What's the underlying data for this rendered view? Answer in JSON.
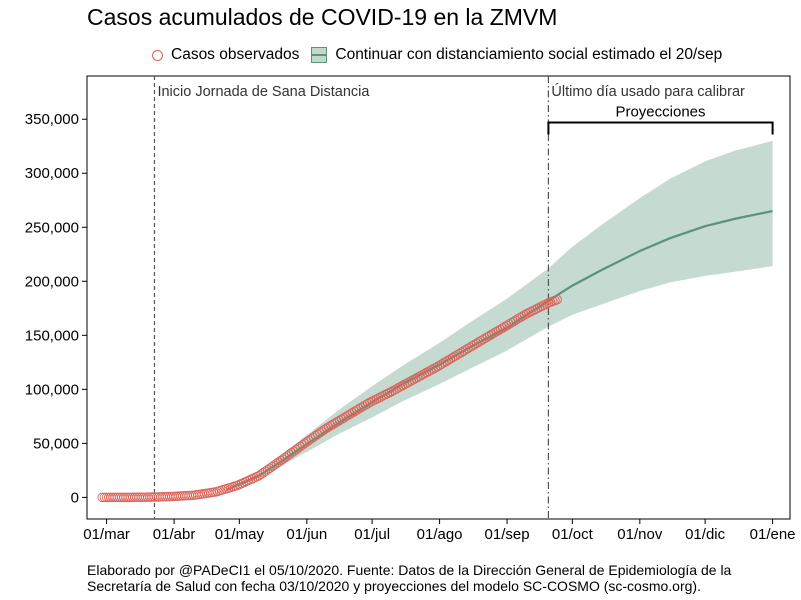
{
  "chart_data": {
    "type": "line",
    "title": "Casos acumulados de COVID-19 en la ZMVM",
    "xlabel": "",
    "ylabel": "",
    "x_axis": {
      "type": "date",
      "range": [
        "2020-02-21",
        "2021-01-09"
      ]
    },
    "ylim": [
      -20000,
      390000
    ],
    "grid": false,
    "legend_position": "top",
    "x_ticks": [
      {
        "date": "2020-03-01",
        "label": "01/mar"
      },
      {
        "date": "2020-04-01",
        "label": "01/abr"
      },
      {
        "date": "2020-05-01",
        "label": "01/may"
      },
      {
        "date": "2020-06-01",
        "label": "01/jun"
      },
      {
        "date": "2020-07-01",
        "label": "01/jul"
      },
      {
        "date": "2020-08-01",
        "label": "01/ago"
      },
      {
        "date": "2020-09-01",
        "label": "01/sep"
      },
      {
        "date": "2020-10-01",
        "label": "01/oct"
      },
      {
        "date": "2020-11-01",
        "label": "01/nov"
      },
      {
        "date": "2020-12-01",
        "label": "01/dic"
      },
      {
        "date": "2021-01-01",
        "label": "01/ene"
      }
    ],
    "y_ticks": [
      {
        "value": 0,
        "label": "0"
      },
      {
        "value": 50000,
        "label": "50,000"
      },
      {
        "value": 100000,
        "label": "100,000"
      },
      {
        "value": 150000,
        "label": "150,000"
      },
      {
        "value": 200000,
        "label": "200,000"
      },
      {
        "value": 250000,
        "label": "250,000"
      },
      {
        "value": 300000,
        "label": "300,000"
      },
      {
        "value": 350000,
        "label": "350,000"
      }
    ],
    "series": [
      {
        "name": "Casos observados",
        "kind": "points",
        "color": "#d9655b",
        "points": [
          [
            "2020-02-28",
            0
          ],
          [
            "2020-03-10",
            20
          ],
          [
            "2020-03-20",
            200
          ],
          [
            "2020-03-31",
            800
          ],
          [
            "2020-04-10",
            2000
          ],
          [
            "2020-04-20",
            5000
          ],
          [
            "2020-04-30",
            11000
          ],
          [
            "2020-05-10",
            20000
          ],
          [
            "2020-05-20",
            34000
          ],
          [
            "2020-05-31",
            50000
          ],
          [
            "2020-06-10",
            64000
          ],
          [
            "2020-06-20",
            76000
          ],
          [
            "2020-06-30",
            88000
          ],
          [
            "2020-07-10",
            98000
          ],
          [
            "2020-07-20",
            109000
          ],
          [
            "2020-07-31",
            121000
          ],
          [
            "2020-08-10",
            133000
          ],
          [
            "2020-08-20",
            145000
          ],
          [
            "2020-08-31",
            158000
          ],
          [
            "2020-09-10",
            170000
          ],
          [
            "2020-09-20",
            180000
          ],
          [
            "2020-09-24",
            183000
          ]
        ]
      },
      {
        "name": "Continuar con distanciamiento social estimado el 20/sep",
        "kind": "line-band",
        "line_color": "#5e9179",
        "band_color": "#c2d8ce",
        "points": [
          [
            "2020-04-25",
            7000,
            7000,
            7000
          ],
          [
            "2020-05-10",
            20000,
            18000,
            22000
          ],
          [
            "2020-05-20",
            33000,
            29000,
            38000
          ],
          [
            "2020-05-31",
            48000,
            41000,
            56000
          ],
          [
            "2020-06-15",
            68000,
            58000,
            80000
          ],
          [
            "2020-07-01",
            88000,
            74000,
            103000
          ],
          [
            "2020-07-15",
            105000,
            89000,
            122000
          ],
          [
            "2020-08-01",
            123000,
            105000,
            143000
          ],
          [
            "2020-08-15",
            139000,
            119000,
            162000
          ],
          [
            "2020-09-01",
            157000,
            136000,
            184000
          ],
          [
            "2020-09-20",
            182000,
            158000,
            212000
          ],
          [
            "2020-10-01",
            196000,
            169000,
            232000
          ],
          [
            "2020-10-15",
            211000,
            179000,
            253000
          ],
          [
            "2020-11-01",
            228000,
            191000,
            277000
          ],
          [
            "2020-11-15",
            240000,
            199000,
            295000
          ],
          [
            "2020-12-01",
            251000,
            205000,
            311000
          ],
          [
            "2020-12-15",
            258000,
            209000,
            321000
          ],
          [
            "2021-01-01",
            265000,
            214000,
            330000
          ]
        ]
      }
    ],
    "annotations": [
      {
        "kind": "vline",
        "date": "2020-03-23",
        "style": "dashed",
        "label": "Inicio Jornada de Sana Distancia"
      },
      {
        "kind": "vline",
        "date": "2020-09-20",
        "style": "dashdot",
        "label": "Último día usado para calibrar"
      },
      {
        "kind": "bracket",
        "from": "2020-09-20",
        "to": "2021-01-01",
        "value": 347000,
        "label": "Proyecciones"
      }
    ]
  },
  "footer": {
    "line1": "Elaborado por @PADeCI1 el 05/10/2020. Fuente: Datos de la Dirección General de Epidemiología de la",
    "line2": "Secretaría de Salud con fecha 03/10/2020 y proyecciones del modelo SC-COSMO (sc-cosmo.org)."
  }
}
